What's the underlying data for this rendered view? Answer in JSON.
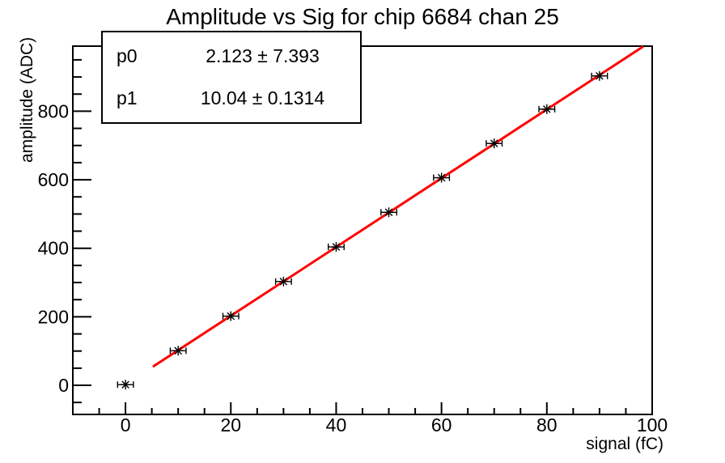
{
  "title": "Amplitude vs Sig for chip 6684 chan 25",
  "stats": {
    "rows": [
      {
        "name": "p0",
        "value": "2.123 ± 7.393"
      },
      {
        "name": "p1",
        "value": "10.04 ± 0.1314"
      }
    ]
  },
  "chart_data": {
    "type": "scatter",
    "title": "Amplitude vs Sig for chip 6684 chan 25",
    "xlabel": "signal (fC)",
    "ylabel": "amplitude (ADC)",
    "xlim": [
      -10,
      100
    ],
    "ylim": [
      -85,
      990
    ],
    "x_major_ticks": [
      0,
      20,
      40,
      60,
      80,
      100
    ],
    "x_minor_step": 5,
    "y_major_ticks": [
      0,
      200,
      400,
      600,
      800
    ],
    "y_minor_step": 50,
    "grid": false,
    "marker": "asterisk-with-x-error-bars",
    "points": {
      "x": [
        0,
        10,
        20,
        30,
        40,
        50,
        60,
        70,
        80,
        90
      ],
      "y": [
        2,
        101,
        202,
        303,
        404,
        505,
        606,
        706,
        806,
        903
      ],
      "xerr": 1.5
    },
    "fit": {
      "label_p0": "2.123 ± 7.393",
      "label_p1": "10.04 ± 0.1314",
      "p0": 2.123,
      "p1": 10.04,
      "x_start": 5.2,
      "x_end": 98.3,
      "color": "#ff0000"
    }
  },
  "colors": {
    "axis": "#000000",
    "fit_line": "#ff0000",
    "background": "#ffffff"
  }
}
